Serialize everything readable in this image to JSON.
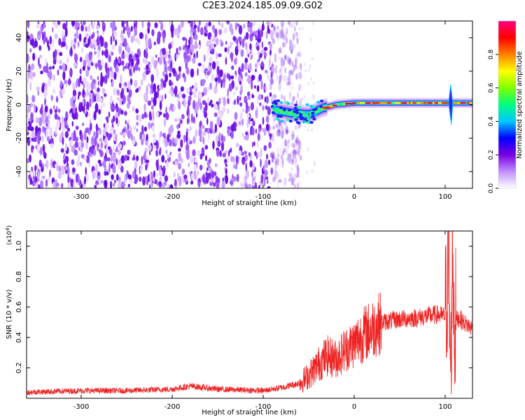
{
  "title": "C2E3.2024.185.09.09.G02",
  "chart_data": [
    {
      "type": "heatmap",
      "xlabel": "Height of straight line (km)",
      "ylabel": "Frequency (Hz)",
      "xlim": [
        -360,
        130
      ],
      "ylim": [
        -50,
        50
      ],
      "xticks": [
        -300,
        -200,
        -100,
        0,
        100
      ],
      "yticks": [
        -40,
        -20,
        0,
        20,
        40
      ],
      "colorbar": {
        "label": "Normalized spectral amplitude",
        "range": [
          0,
          1
        ],
        "ticks": [
          0.0,
          0.2,
          0.4,
          0.6,
          0.8
        ],
        "tick_labels": [
          "0.0",
          "0.2",
          "0.4",
          "0.6",
          "0.8"
        ],
        "colors": [
          "#ffffff",
          "#c090ff",
          "#7a00e0",
          "#0000ff",
          "#00c8ff",
          "#00ff80",
          "#80ff00",
          "#ffff00",
          "#ff8000",
          "#ff0000",
          "#ff0080"
        ]
      },
      "features": {
        "noise_region_x": [
          -360,
          -70
        ],
        "signal_line": [
          [
            -90,
            -3
          ],
          [
            -70,
            -5
          ],
          [
            -50,
            -6
          ],
          [
            -35,
            -2
          ],
          [
            -20,
            0
          ],
          [
            0,
            1
          ],
          [
            30,
            1
          ],
          [
            60,
            1
          ],
          [
            90,
            1
          ],
          [
            110,
            1
          ],
          [
            130,
            1
          ]
        ],
        "burst_x": 106
      }
    },
    {
      "type": "line",
      "xlabel": "Height of straight line (km)",
      "ylabel": "SNR (10 * v/v)",
      "yscale_label": "(x10",
      "yscale_exp": "4",
      "yscale_close": ")",
      "xlim": [
        -360,
        130
      ],
      "ylim": [
        0,
        1.1
      ],
      "xticks": [
        -300,
        -200,
        -100,
        0,
        100
      ],
      "yticks": [
        0.2,
        0.4,
        0.6,
        0.8,
        1.0
      ],
      "ytick_labels": [
        "0.2",
        "0.4",
        "0.6",
        "0.8",
        "1.0"
      ],
      "series": [
        {
          "color": "#ee2222",
          "x": [
            -360,
            -300,
            -250,
            -200,
            -180,
            -150,
            -100,
            -80,
            -60,
            -50,
            -40,
            -30,
            -20,
            -10,
            0,
            10,
            20,
            30,
            50,
            70,
            90,
            100,
            104,
            106,
            108,
            110,
            115,
            120,
            130
          ],
          "y": [
            0.04,
            0.05,
            0.05,
            0.06,
            0.08,
            0.06,
            0.05,
            0.07,
            0.1,
            0.15,
            0.22,
            0.28,
            0.26,
            0.32,
            0.36,
            0.42,
            0.46,
            0.5,
            0.52,
            0.53,
            0.55,
            0.54,
            0.9,
            0.1,
            1.05,
            0.5,
            0.53,
            0.5,
            0.46
          ]
        }
      ]
    }
  ]
}
